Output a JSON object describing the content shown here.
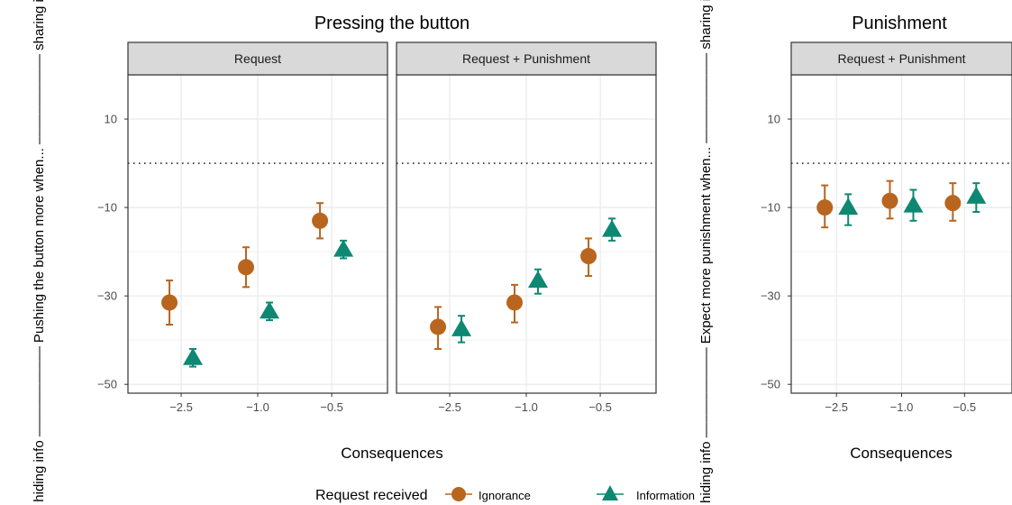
{
  "figure": {
    "legend_title": "Request received",
    "legend_items": [
      {
        "label": "Ignorance",
        "color": "#B8651F",
        "shape": "circle"
      },
      {
        "label": "Information",
        "color": "#0E8872",
        "shape": "triangle"
      }
    ]
  },
  "chart_data": [
    {
      "type": "scatter",
      "title": "Pressing the button",
      "ylabel": "<– hiding info ––––––––––– Pushing the button more when... ––––––––––– sharing info –>",
      "ylabel_parts": [
        "<– hiding info ––––––––––––",
        "Pushing the button more when...",
        "–––––––––––– sharing info –>"
      ],
      "xlabel": "Consequences",
      "x_ticks": [
        "−2.5",
        "−1.0",
        "−0.5"
      ],
      "y_ticks": [
        "10",
        "−10",
        "−30",
        "−50"
      ],
      "ylim": [
        -52,
        20
      ],
      "reference_line_y": 0,
      "reference_line_style": "dotted",
      "grid": true,
      "panels": [
        {
          "strip": "Request",
          "series": [
            {
              "name": "Ignorance",
              "points": [
                {
                  "x": "−2.5",
                  "y": -31.5,
                  "ylo": -36.5,
                  "yhi": -26.5
                },
                {
                  "x": "−1.0",
                  "y": -23.5,
                  "ylo": -28,
                  "yhi": -19
                },
                {
                  "x": "−0.5",
                  "y": -13,
                  "ylo": -17,
                  "yhi": -9
                }
              ]
            },
            {
              "name": "Information",
              "points": [
                {
                  "x": "−2.5",
                  "y": -44,
                  "ylo": -46,
                  "yhi": -42
                },
                {
                  "x": "−1.0",
                  "y": -33.5,
                  "ylo": -35.5,
                  "yhi": -31.5
                },
                {
                  "x": "−0.5",
                  "y": -19.5,
                  "ylo": -21.5,
                  "yhi": -17.5
                }
              ]
            }
          ]
        },
        {
          "strip": "Request + Punishment",
          "series": [
            {
              "name": "Ignorance",
              "points": [
                {
                  "x": "−2.5",
                  "y": -37,
                  "ylo": -42,
                  "yhi": -32.5
                },
                {
                  "x": "−1.0",
                  "y": -31.5,
                  "ylo": -36,
                  "yhi": -27.5
                },
                {
                  "x": "−0.5",
                  "y": -21,
                  "ylo": -25.5,
                  "yhi": -17
                }
              ]
            },
            {
              "name": "Information",
              "points": [
                {
                  "x": "−2.5",
                  "y": -37.5,
                  "ylo": -40.5,
                  "yhi": -34.5
                },
                {
                  "x": "−1.0",
                  "y": -26.5,
                  "ylo": -29.5,
                  "yhi": -24
                },
                {
                  "x": "−0.5",
                  "y": -15,
                  "ylo": -17.5,
                  "yhi": -12.5
                }
              ]
            }
          ]
        }
      ]
    },
    {
      "type": "scatter",
      "title": "Punishment",
      "ylabel": "<– hiding info ––––––––––– Expect more punishment when... ––––––––––– sharing info –>",
      "ylabel_parts": [
        "<– hiding info ––––––––––––",
        "Expect more punishment when...",
        "–––––––––––– sharing info –>"
      ],
      "xlabel": "Consequences",
      "x_ticks": [
        "−2.5",
        "−1.0",
        "−0.5"
      ],
      "y_ticks": [
        "10",
        "−10",
        "−30",
        "−50"
      ],
      "ylim": [
        -52,
        20
      ],
      "reference_line_y": 0,
      "reference_line_style": "dotted",
      "grid": true,
      "panels": [
        {
          "strip": "Request + Punishment",
          "series": [
            {
              "name": "Ignorance",
              "points": [
                {
                  "x": "−2.5",
                  "y": -10,
                  "ylo": -14.5,
                  "yhi": -5
                },
                {
                  "x": "−1.0",
                  "y": -8.5,
                  "ylo": -12.5,
                  "yhi": -4
                },
                {
                  "x": "−0.5",
                  "y": -9,
                  "ylo": -13,
                  "yhi": -4.5
                }
              ]
            },
            {
              "name": "Information",
              "points": [
                {
                  "x": "−2.5",
                  "y": -10,
                  "ylo": -14,
                  "yhi": -7
                },
                {
                  "x": "−1.0",
                  "y": -9.5,
                  "ylo": -13,
                  "yhi": -6
                },
                {
                  "x": "−0.5",
                  "y": -7.5,
                  "ylo": -11,
                  "yhi": -4.5
                }
              ]
            }
          ]
        }
      ]
    }
  ]
}
